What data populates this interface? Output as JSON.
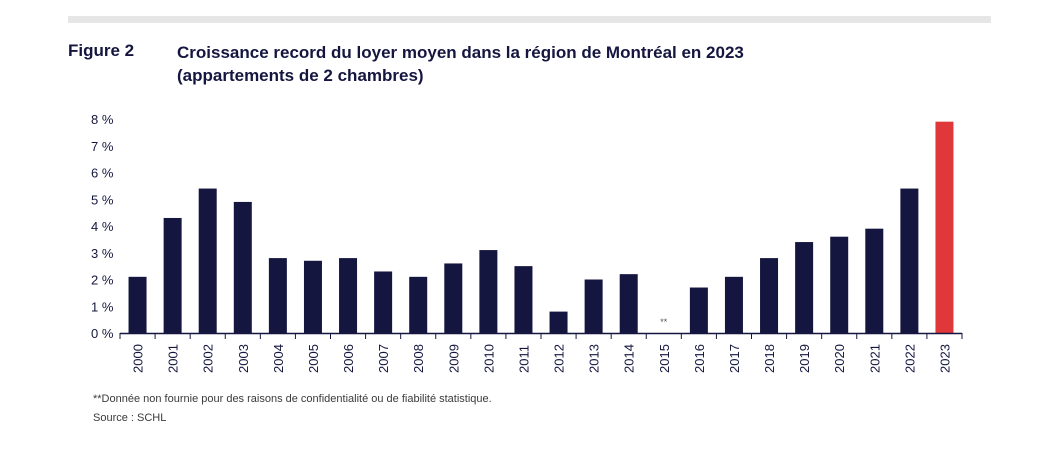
{
  "figure": {
    "label": "Figure 2",
    "title_line1": "Croissance record du loyer moyen dans la région de Montréal en 2023",
    "title_line2": "(appartements de 2 chambres)"
  },
  "footnote": "**Donnée non fournie pour des raisons de confidentialité ou de fiabilité statistique.",
  "source": "Source : SCHL",
  "colors": {
    "bar": "#14163f",
    "highlight": "#e0383a",
    "axis": "#14163f",
    "rule": "#e6e6e6"
  },
  "chart_data": {
    "type": "bar",
    "title": "Croissance record du loyer moyen dans la région de Montréal en 2023 (appartements de 2 chambres)",
    "xlabel": "",
    "ylabel": "",
    "ylim": [
      0,
      8
    ],
    "grid": false,
    "yticks": [
      "0 %",
      "1 %",
      "2 %",
      "3 %",
      "4 %",
      "5 %",
      "6 %",
      "7 %",
      "8 %"
    ],
    "categories": [
      "2000",
      "2001",
      "2002",
      "2003",
      "2004",
      "2005",
      "2006",
      "2007",
      "2008",
      "2009",
      "2010",
      "2011",
      "2012",
      "2013",
      "2014",
      "2015",
      "2016",
      "2017",
      "2018",
      "2019",
      "2020",
      "2021",
      "2022",
      "2023"
    ],
    "values": [
      2.1,
      4.3,
      5.4,
      4.9,
      2.8,
      2.7,
      2.8,
      2.3,
      2.1,
      2.6,
      3.1,
      2.5,
      0.8,
      2.0,
      2.2,
      null,
      1.7,
      2.1,
      2.8,
      3.4,
      3.6,
      3.9,
      5.4,
      7.9
    ],
    "highlight_category": "2023",
    "missing_marker": "**",
    "missing_category": "2015"
  }
}
